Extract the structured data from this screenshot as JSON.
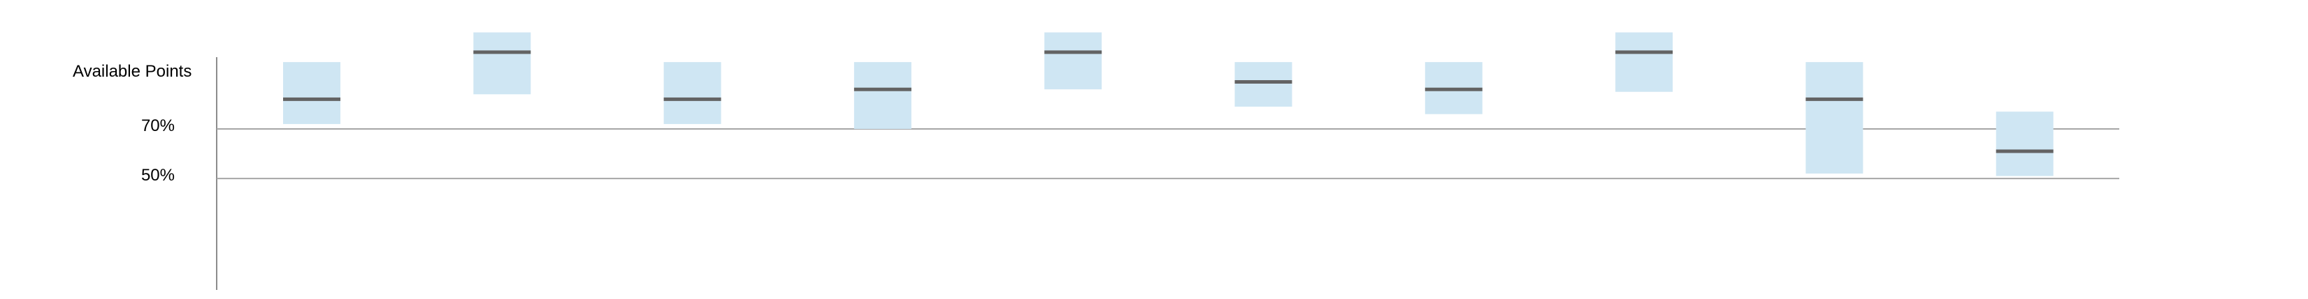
{
  "chart_data": {
    "type": "range",
    "ylabel": "Available Points",
    "reference_lines": [
      {
        "value": 70,
        "label": "70%"
      },
      {
        "value": 50,
        "label": "50%"
      }
    ],
    "ylim": [
      5,
      99
    ],
    "series": [
      {
        "values": [
          {
            "low": 72,
            "high": 97,
            "median": 82
          },
          {
            "low": 84,
            "high": 109,
            "median": 101
          },
          {
            "low": 72,
            "high": 97,
            "median": 82
          },
          {
            "low": 70,
            "high": 97,
            "median": 86
          },
          {
            "low": 86,
            "high": 109,
            "median": 101
          },
          {
            "low": 79,
            "high": 97,
            "median": 89
          },
          {
            "low": 76,
            "high": 97,
            "median": 86
          },
          {
            "low": 85,
            "high": 109,
            "median": 101
          },
          {
            "low": 52,
            "high": 97,
            "median": 82
          },
          {
            "low": 51,
            "high": 77,
            "median": 61
          }
        ]
      }
    ],
    "colors": {
      "box": "#cfe6f3",
      "median": "#636363",
      "reference": "#a6a6a6",
      "axis": "#8c8c8c"
    }
  }
}
